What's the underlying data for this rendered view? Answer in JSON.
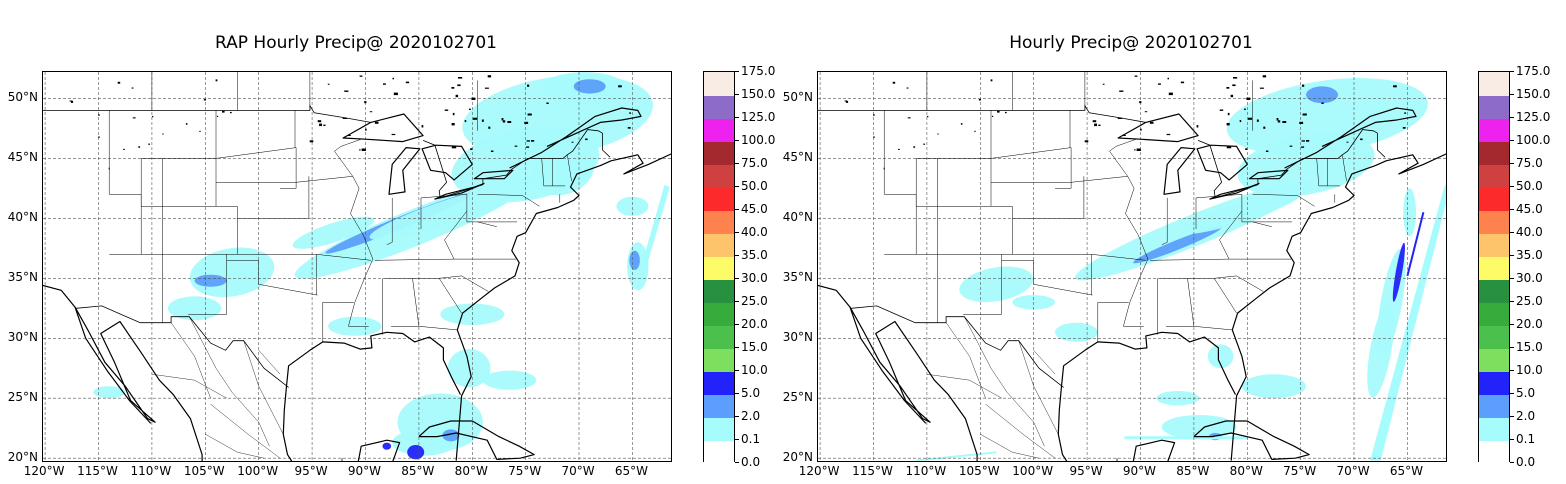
{
  "panels": [
    {
      "title": "RAP Hourly Precip@ 2020102701"
    },
    {
      "title": "Hourly Precip@ 2020102701"
    }
  ],
  "axes": {
    "lat_labels": [
      "50°N",
      "45°N",
      "40°N",
      "35°N",
      "30°N",
      "25°N",
      "20°N"
    ],
    "lat_values": [
      50,
      45,
      40,
      35,
      30,
      25,
      20
    ],
    "lon_labels": [
      "120°W",
      "115°W",
      "110°W",
      "105°W",
      "100°W",
      "95°W",
      "90°W",
      "85°W",
      "80°W",
      "75°W",
      "70°W",
      "65°W"
    ],
    "lon_values": [
      -120,
      -115,
      -110,
      -105,
      -100,
      -95,
      -90,
      -85,
      -80,
      -75,
      -70,
      -65
    ],
    "lat_range": [
      19.6,
      52.2
    ],
    "lon_range": [
      -120.2,
      -61.2
    ],
    "gridlines": true
  },
  "colorbar": {
    "labels": [
      "0.0",
      "0.1",
      "2.0",
      "5.0",
      "10.0",
      "15.0",
      "20.0",
      "25.0",
      "30.0",
      "35.0",
      "40.0",
      "45.0",
      "50.0",
      "75.0",
      "100.0",
      "125.0",
      "150.0",
      "175.0"
    ],
    "colors": [
      "#ffffff",
      "#a6fbfc",
      "#5c9efb",
      "#2222fb",
      "#7ede5e",
      "#4cc04c",
      "#35ac3c",
      "#27913f",
      "#fdfb67",
      "#fdc46b",
      "#fd824e",
      "#fc2a2a",
      "#cf4141",
      "#a4292e",
      "#ee22ee",
      "#8d6cc9",
      "#f9ece4"
    ]
  },
  "colors": {
    "light_precip": "#a6fbfc",
    "medium_precip": "#5c9efb",
    "heavy_precip": "#2222fb",
    "coastline": "#000000",
    "borders": "#000000",
    "grid": "#555555"
  }
}
